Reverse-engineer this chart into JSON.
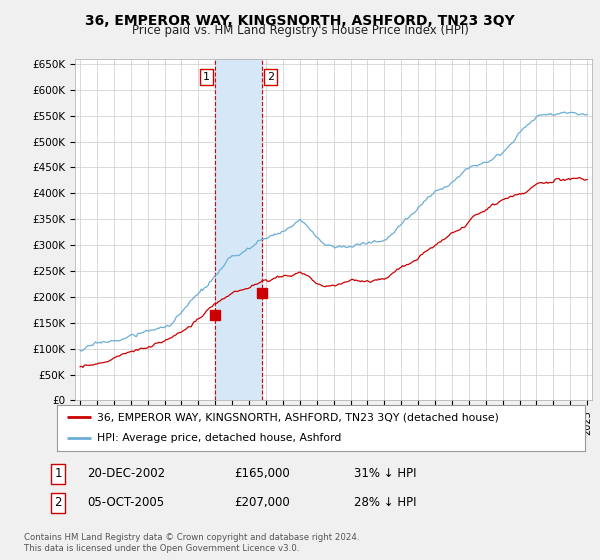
{
  "title": "36, EMPEROR WAY, KINGSNORTH, ASHFORD, TN23 3QY",
  "subtitle": "Price paid vs. HM Land Registry's House Price Index (HPI)",
  "ylabel_ticks": [
    "£0",
    "£50K",
    "£100K",
    "£150K",
    "£200K",
    "£250K",
    "£300K",
    "£350K",
    "£400K",
    "£450K",
    "£500K",
    "£550K",
    "£600K",
    "£650K"
  ],
  "ytick_values": [
    0,
    50000,
    100000,
    150000,
    200000,
    250000,
    300000,
    350000,
    400000,
    450000,
    500000,
    550000,
    600000,
    650000
  ],
  "ylim": [
    0,
    660000
  ],
  "xlim_start": 1994.7,
  "xlim_end": 2025.3,
  "hpi_color": "#6baed6",
  "price_color": "#cc0000",
  "shade_color": "#d6e8f7",
  "vline_color": "#dd0000",
  "transaction1_date": 2002.97,
  "transaction1_price": 165000,
  "transaction1_label": "1",
  "transaction2_date": 2005.75,
  "transaction2_price": 207000,
  "transaction2_label": "2",
  "legend_line1": "36, EMPEROR WAY, KINGSNORTH, ASHFORD, TN23 3QY (detached house)",
  "legend_line2": "HPI: Average price, detached house, Ashford",
  "table_row1": [
    "1",
    "20-DEC-2002",
    "£165,000",
    "31% ↓ HPI"
  ],
  "table_row2": [
    "2",
    "05-OCT-2005",
    "£207,000",
    "28% ↓ HPI"
  ],
  "footer": "Contains HM Land Registry data © Crown copyright and database right 2024.\nThis data is licensed under the Open Government Licence v3.0.",
  "background_color": "#f0f0f0",
  "plot_background": "#ffffff"
}
